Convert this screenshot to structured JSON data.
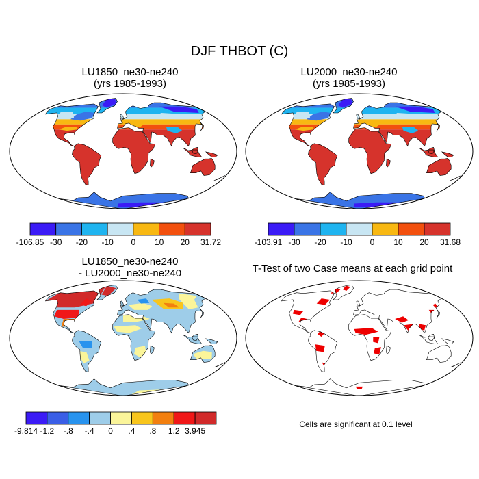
{
  "main_title": "DJF THBOT (C)",
  "panels": {
    "p1": {
      "title_line1": "LU1850_ne30-ne240",
      "title_line2": "(yrs 1985-1993)"
    },
    "p2": {
      "title_line1": "LU2000_ne30-ne240",
      "title_line2": "(yrs 1985-1993)"
    },
    "p3": {
      "title_line1": "LU1850_ne30-ne240",
      "title_line2": "- LU2000_ne30-ne240"
    },
    "p4": {
      "title_line1": "T-Test of two Case means at each grid point"
    }
  },
  "colorbars": {
    "cb1": {
      "colors": [
        "#3b1bf6",
        "#3a74e6",
        "#1fb4f0",
        "#c8e6f3",
        "#f8b812",
        "#f2500e",
        "#d6332c"
      ],
      "labels": [
        "-106.85",
        "-30",
        "-20",
        "-10",
        "0",
        "10",
        "20",
        "31.72"
      ]
    },
    "cb2": {
      "colors": [
        "#3b1bf6",
        "#3a74e6",
        "#1fb4f0",
        "#c8e6f3",
        "#f8b812",
        "#f2500e",
        "#d6332c"
      ],
      "labels": [
        "-103.91",
        "-30",
        "-20",
        "-10",
        "0",
        "10",
        "20",
        "31.68"
      ]
    },
    "cb3": {
      "colors": [
        "#3b1bf6",
        "#3a5ee6",
        "#2893ee",
        "#9ecde9",
        "#fbf59a",
        "#f8c51c",
        "#f27f0f",
        "#f01818",
        "#d12a2a"
      ],
      "labels": [
        "-9.814",
        "-1.2",
        "-.8",
        "-.4",
        "0",
        ".4",
        ".8",
        "1.2",
        "3.945"
      ]
    }
  },
  "significance_note": "Cells are significant at 0.1 level"
}
